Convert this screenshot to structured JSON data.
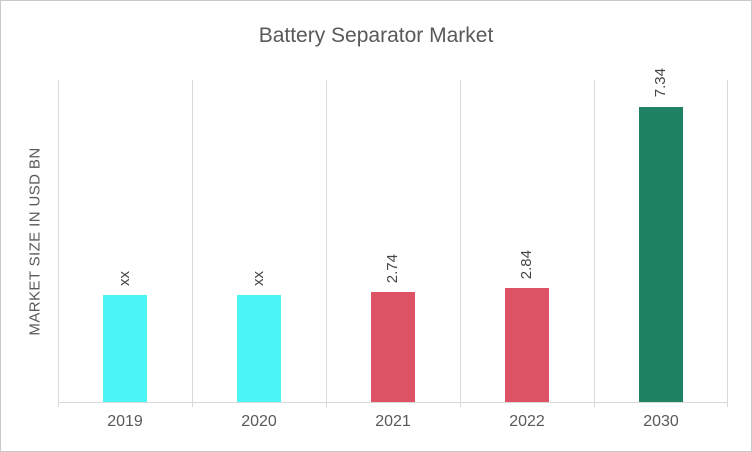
{
  "window": {
    "background": "#ffffff",
    "border_color": "#c9c9c9"
  },
  "chart_data": {
    "type": "bar",
    "title": "Battery Separator Market",
    "xlabel": "",
    "ylabel": "MARKET SIZE IN USD BN",
    "categories": [
      "2019",
      "2020",
      "2021",
      "2022",
      "2030"
    ],
    "values": [
      2.65,
      2.67,
      2.74,
      2.84,
      7.34
    ],
    "value_labels": [
      "xx",
      "xx",
      "2.74",
      "2.84",
      "7.34"
    ],
    "bar_colors": [
      "#4bf4f6",
      "#4bf4f6",
      "#de5266",
      "#de5266",
      "#1f8265"
    ],
    "ylim": [
      0,
      8
    ],
    "grid": "vertical-category-separators",
    "legend_position": "none",
    "value_label_rotation": -90,
    "colors": {
      "title_text": "#595959",
      "axis_text": "#595959",
      "value_label_text": "#454545",
      "gridline": "#d9d9d9"
    }
  }
}
